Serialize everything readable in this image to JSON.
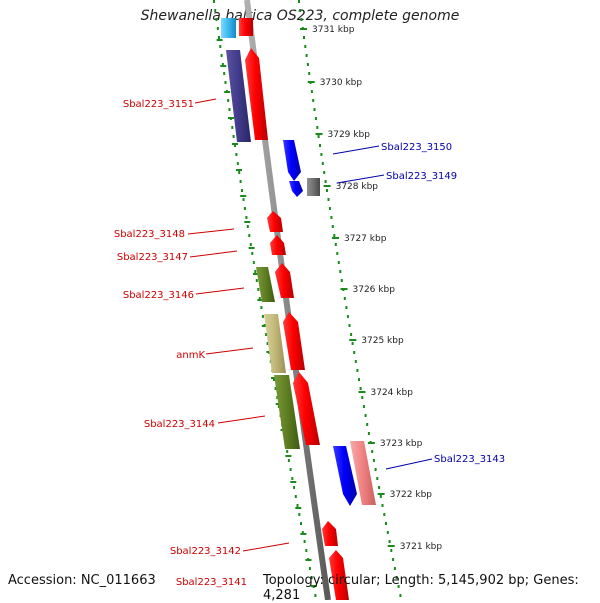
{
  "title": "Shewanella baltica OS223, complete genome",
  "footer": {
    "accession": "Accession: NC_011663",
    "topology": "Topology: circular; Length: 5,145,902 bp; Genes: 4,281"
  },
  "colors": {
    "minus_label": "#cc0000",
    "plus_label": "#0000aa",
    "backbone": "#8a8a8a",
    "dots": "#1a8a1a"
  },
  "ticks": [
    "3731 kbp",
    "3730 kbp",
    "3729 kbp",
    "3728 kbp",
    "3727 kbp",
    "3726 kbp",
    "3725 kbp",
    "3724 kbp",
    "3723 kbp",
    "3722 kbp",
    "3721 kbp"
  ],
  "labels": {
    "minus": [
      "Sbal223_3151",
      "Sbal223_3148",
      "Sbal223_3147",
      "Sbal223_3146",
      "anmK",
      "Sbal223_3144",
      "Sbal223_3142",
      "Sbal223_3141"
    ],
    "plus": [
      "Sbal223_3150",
      "Sbal223_3149",
      "Sbal223_3143"
    ]
  }
}
